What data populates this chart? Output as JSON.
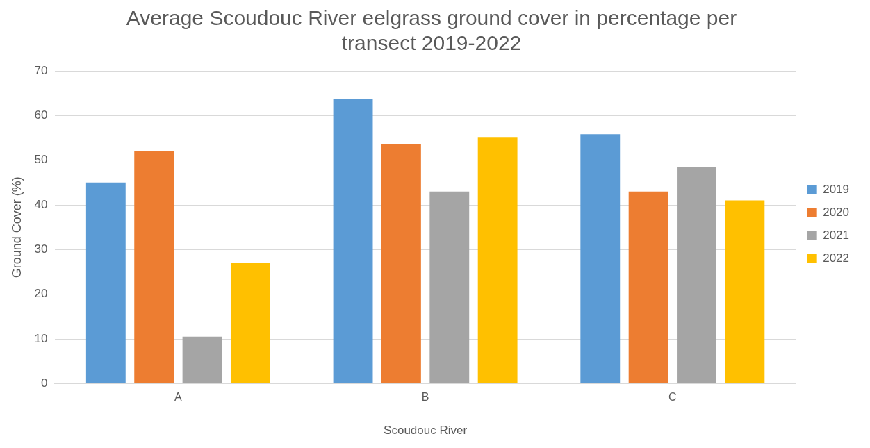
{
  "chart_data": {
    "type": "bar",
    "title": "Average Scoudouc River eelgrass ground cover in percentage per transect 2019-2022",
    "xlabel": "Scoudouc River",
    "ylabel": "Ground Cover (%)",
    "categories": [
      "A",
      "B",
      "C"
    ],
    "series": [
      {
        "name": "2019",
        "color": "#5b9bd5",
        "values": [
          45,
          63.7,
          55.8
        ]
      },
      {
        "name": "2020",
        "color": "#ed7d31",
        "values": [
          52,
          53.7,
          43
        ]
      },
      {
        "name": "2021",
        "color": "#a5a5a5",
        "values": [
          10.5,
          43,
          48.4
        ]
      },
      {
        "name": "2022",
        "color": "#ffc000",
        "values": [
          27,
          55.2,
          41
        ]
      }
    ],
    "ylim": [
      0,
      70
    ],
    "yticks": [
      0,
      10,
      20,
      30,
      40,
      50,
      60,
      70
    ],
    "grid": "y",
    "legend": "right"
  }
}
